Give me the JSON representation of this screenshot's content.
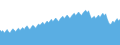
{
  "chart_data": {
    "type": "area",
    "values": [
      55,
      52,
      54,
      50,
      53,
      56,
      52,
      50,
      54,
      57,
      55,
      52,
      56,
      58,
      54,
      57,
      59,
      56,
      60,
      62,
      58,
      56,
      60,
      63,
      61,
      58,
      62,
      65,
      63,
      66,
      68,
      64,
      67,
      70,
      67,
      70,
      73,
      69,
      72,
      75,
      72,
      69,
      73,
      76,
      78,
      74,
      77,
      80,
      77,
      74,
      78,
      81,
      83,
      79,
      82,
      85,
      82,
      79,
      83,
      86,
      88,
      84,
      87,
      80,
      74,
      76,
      78,
      74,
      77,
      80,
      76,
      80,
      83,
      79,
      82,
      74,
      68,
      64,
      66,
      70,
      67,
      71,
      74,
      70,
      73
    ],
    "color": "#5aaee3",
    "xlim": [
      0,
      84
    ],
    "ylim": [
      30,
      105
    ],
    "grid": false,
    "tick_labels": false
  }
}
